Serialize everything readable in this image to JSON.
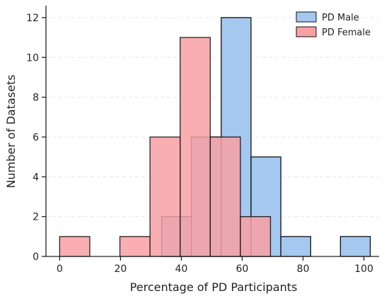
{
  "chart_data": {
    "type": "bar",
    "title": "",
    "xlabel": "Percentage of PD Participants",
    "ylabel": "Number of Datasets",
    "xlim": [
      -4.5,
      105
    ],
    "ylim": [
      0,
      12.6
    ],
    "x_ticks": [
      0,
      20,
      40,
      60,
      80,
      100
    ],
    "y_ticks": [
      0,
      2,
      4,
      6,
      8,
      10,
      12
    ],
    "grid": "horizontal dashed",
    "legend_position": "top-right",
    "series": [
      {
        "name": "PD Male",
        "color": "#a4c8f0",
        "bins": [
          {
            "x0": 33.5,
            "x1": 43.3,
            "count": 2
          },
          {
            "x0": 43.3,
            "x1": 53.1,
            "count": 6
          },
          {
            "x0": 53.1,
            "x1": 62.9,
            "count": 12
          },
          {
            "x0": 62.9,
            "x1": 72.7,
            "count": 5
          },
          {
            "x0": 72.7,
            "x1": 82.5,
            "count": 1
          },
          {
            "x0": 82.5,
            "x1": 92.3,
            "count": 0
          },
          {
            "x0": 92.3,
            "x1": 102.1,
            "count": 1
          }
        ]
      },
      {
        "name": "PD Female",
        "color": "#f8a0a4",
        "bins": [
          {
            "x0": 0.0,
            "x1": 9.9,
            "count": 1
          },
          {
            "x0": 9.9,
            "x1": 19.8,
            "count": 0
          },
          {
            "x0": 19.8,
            "x1": 29.7,
            "count": 1
          },
          {
            "x0": 29.7,
            "x1": 39.6,
            "count": 6
          },
          {
            "x0": 39.6,
            "x1": 49.5,
            "count": 11
          },
          {
            "x0": 49.5,
            "x1": 59.4,
            "count": 6
          },
          {
            "x0": 59.4,
            "x1": 69.3,
            "count": 2
          }
        ]
      }
    ]
  }
}
